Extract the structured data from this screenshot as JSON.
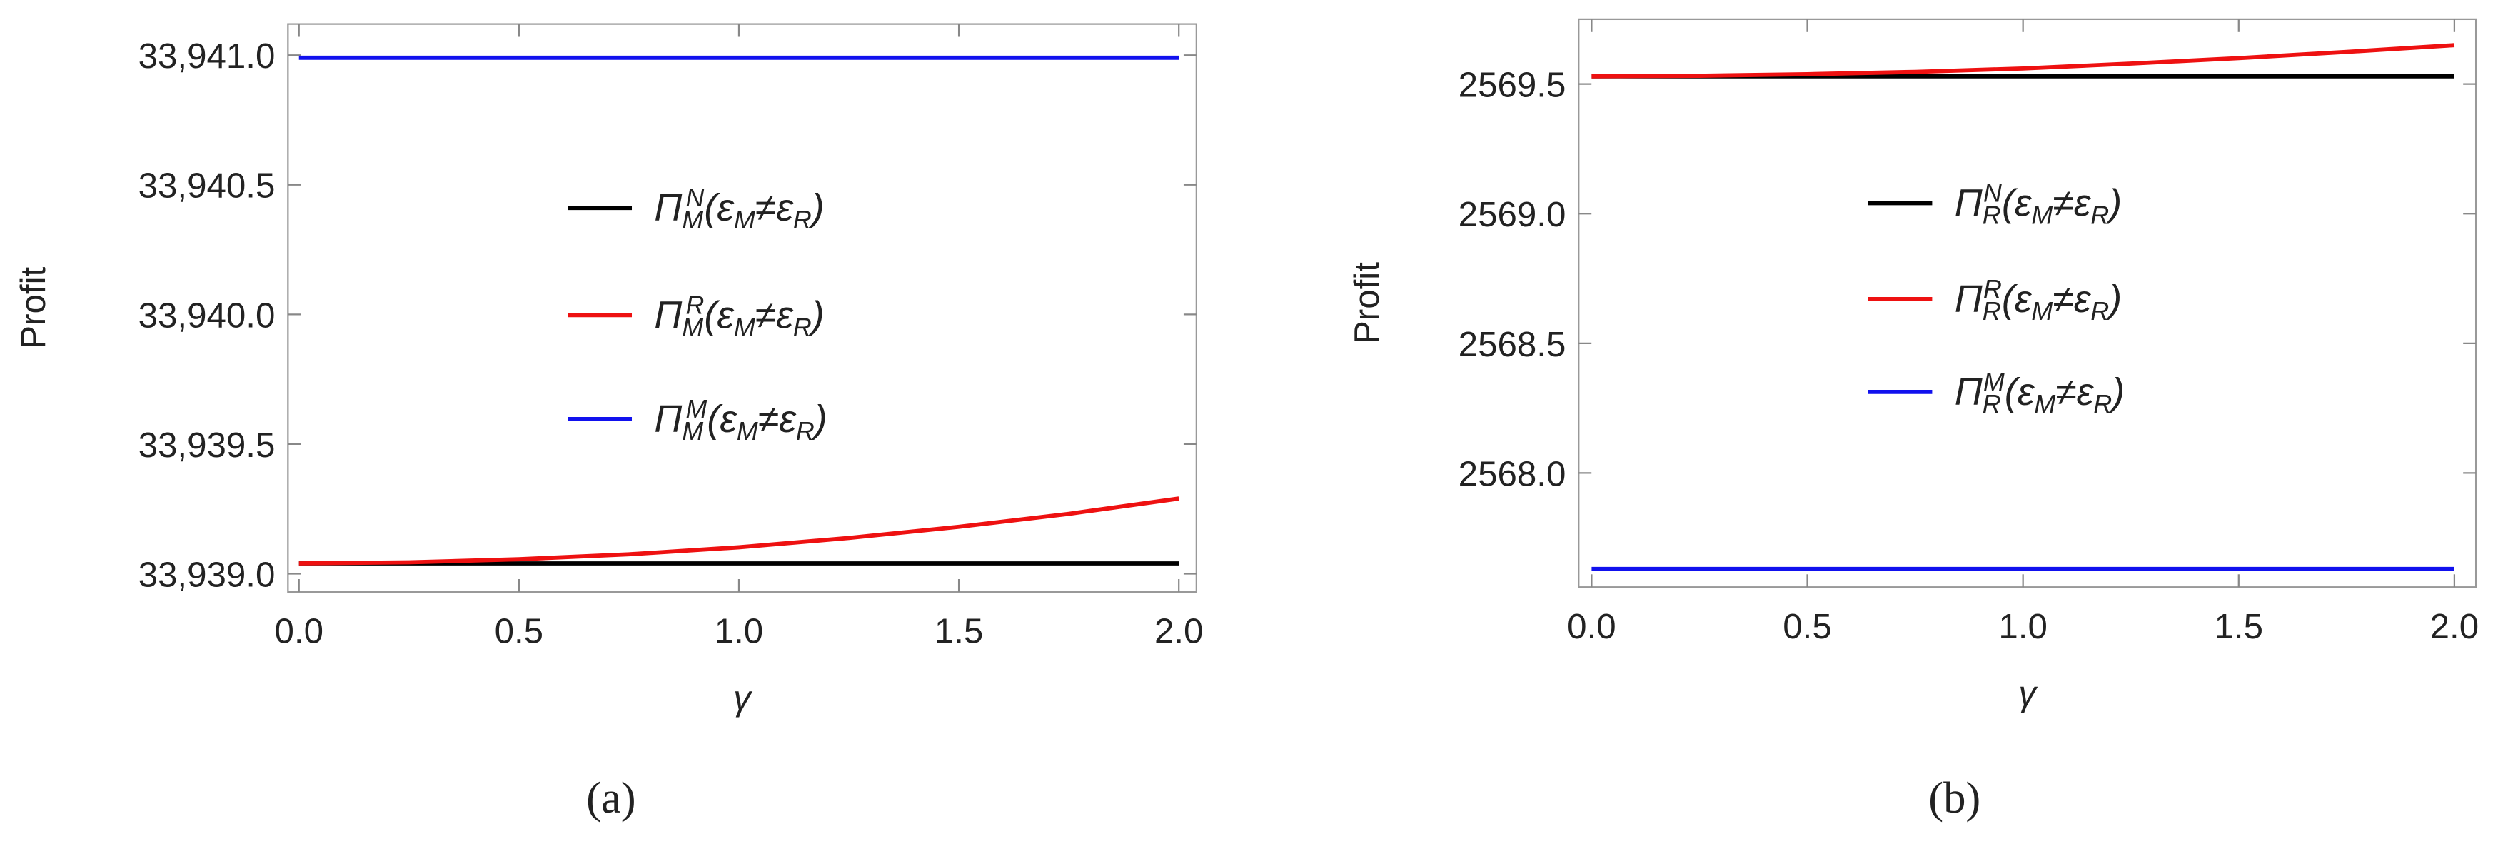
{
  "chart_data": [
    {
      "type": "line",
      "caption": "(a)",
      "y_label": "Profit",
      "x_label": "γ",
      "x": [
        0,
        0.25,
        0.5,
        0.75,
        1,
        1.25,
        1.5,
        1.75,
        2
      ],
      "xlim": [
        -0.025,
        2.04
      ],
      "xticks": [
        {
          "value": 0,
          "label": "0.0"
        },
        0.5,
        {
          "value": 1,
          "label": "1.0"
        },
        1.5,
        {
          "value": 2,
          "label": "2.0"
        }
      ],
      "ylim": [
        33938.93,
        33941.12
      ],
      "yticks": [
        {
          "value": 33939,
          "label": "33,939.0"
        },
        {
          "value": 33939.5,
          "label": "33,939.5"
        },
        {
          "value": 33940,
          "label": "33,940.0"
        },
        {
          "value": 33940.5,
          "label": "33,940.5"
        },
        {
          "value": 33941,
          "label": "33,941.0"
        }
      ],
      "series": [
        {
          "name": "Π_M^N(ε_M≠ε_R)",
          "color": "#000000",
          "values": [
            33939.04,
            33939.04,
            33939.04,
            33939.04,
            33939.04,
            33939.04,
            33939.04,
            33939.04,
            33939.04
          ]
        },
        {
          "name": "Π_M^R(ε_M≠ε_R)",
          "color": "#ee1111",
          "values": [
            33939.04,
            33939.044,
            33939.056,
            33939.075,
            33939.102,
            33939.138,
            33939.181,
            33939.231,
            33939.29
          ]
        },
        {
          "name": "Π_M^M(ε_M≠ε_R)",
          "color": "#1111ee",
          "values": [
            33940.99,
            33940.99,
            33940.99,
            33940.99,
            33940.99,
            33940.99,
            33940.99,
            33940.99,
            33940.99
          ]
        }
      ]
    },
    {
      "type": "line",
      "caption": "(b)",
      "y_label": "Profit",
      "x_label": "γ",
      "x": [
        0,
        0.25,
        0.5,
        0.75,
        1,
        1.25,
        1.5,
        1.75,
        2
      ],
      "xlim": [
        -0.03,
        2.05
      ],
      "xticks": [
        {
          "value": 0,
          "label": "0.0"
        },
        0.5,
        {
          "value": 1,
          "label": "1.0"
        },
        1.5,
        {
          "value": 2,
          "label": "2.0"
        }
      ],
      "ylim": [
        2567.56,
        2569.75
      ],
      "yticks": [
        {
          "value": 2568,
          "label": "2568.0"
        },
        2568.5,
        {
          "value": 2569,
          "label": "2569.0"
        },
        2569.5
      ],
      "series": [
        {
          "name": "Π_R^N(ε_M≠ε_R)",
          "color": "#000000",
          "values": [
            2569.53,
            2569.53,
            2569.53,
            2569.53,
            2569.53,
            2569.53,
            2569.53,
            2569.53,
            2569.53
          ]
        },
        {
          "name": "Π_R^R(ε_M≠ε_R)",
          "color": "#ee1111",
          "values": [
            2569.53,
            2569.532,
            2569.538,
            2569.547,
            2569.56,
            2569.579,
            2569.6,
            2569.624,
            2569.65
          ]
        },
        {
          "name": "Π_R^M(ε_M≠ε_R)",
          "color": "#1111ee",
          "values": [
            2567.63,
            2567.63,
            2567.63,
            2567.63,
            2567.63,
            2567.63,
            2567.63,
            2567.63,
            2567.63
          ]
        }
      ]
    }
  ]
}
